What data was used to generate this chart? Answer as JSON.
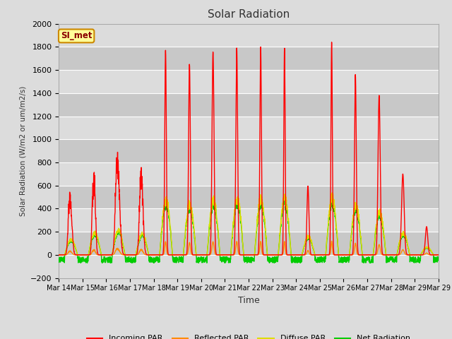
{
  "title": "Solar Radiation",
  "ylabel": "Solar Radiation (W/m2 or um/m2/s)",
  "xlabel": "Time",
  "annotation": "SI_met",
  "ylim": [
    -200,
    2000
  ],
  "yticks": [
    -200,
    0,
    200,
    400,
    600,
    800,
    1000,
    1200,
    1400,
    1600,
    1800,
    2000
  ],
  "xtick_labels": [
    "Mar 14",
    "Mar 15",
    "Mar 16",
    "Mar 17",
    "Mar 18",
    "Mar 19",
    "Mar 20",
    "Mar 21",
    "Mar 22",
    "Mar 23",
    "Mar 24",
    "Mar 25",
    "Mar 26",
    "Mar 27",
    "Mar 28",
    "Mar 29",
    "Mar 29"
  ],
  "colors": {
    "incoming": "#FF0000",
    "reflected": "#FF8C00",
    "diffuse": "#DDDD00",
    "net": "#00CC00"
  },
  "legend_labels": [
    "Incoming PAR",
    "Reflected PAR",
    "Diffuse PAR",
    "Net Radiation"
  ],
  "fig_bg": "#DCDCDC",
  "plot_bg": "#DCDCDC",
  "grid_color": "#FFFFFF",
  "annotation_bg": "#FFFF99",
  "annotation_border": "#CC8800",
  "n_days": 16,
  "pts_per_day": 144,
  "incoming_peaks": [
    490,
    710,
    790,
    680,
    1770,
    1650,
    1755,
    1790,
    1800,
    1790,
    595,
    1840,
    1560,
    1380,
    700,
    245
  ],
  "peak_hour": [
    12.0,
    12.0,
    12.0,
    12.0,
    12.0,
    12.2,
    12.0,
    12.0,
    12.2,
    12.3,
    12.0,
    12.0,
    12.0,
    12.0,
    12.0,
    12.0
  ],
  "peak_width": [
    1.5,
    1.2,
    1.8,
    1.5,
    0.8,
    0.9,
    1.0,
    0.9,
    0.8,
    0.7,
    1.0,
    0.7,
    0.9,
    1.1,
    1.3,
    1.2
  ],
  "day_start": 6.0,
  "day_end": 19.0
}
